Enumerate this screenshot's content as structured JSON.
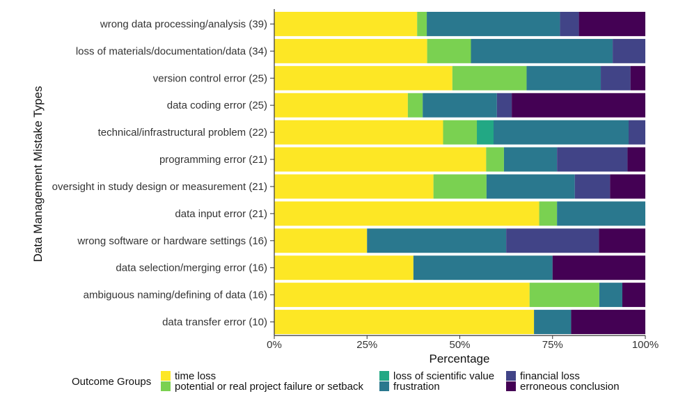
{
  "chart_data": {
    "type": "bar",
    "orientation": "horizontal",
    "stacked": "percent",
    "title": "",
    "xlabel": "Percentage",
    "ylabel": "Data Management Mistake Types",
    "xlim": [
      0,
      100
    ],
    "x_ticks": [
      "0%",
      "25%",
      "50%",
      "75%",
      "100%"
    ],
    "grid": false,
    "legend_position": "bottom",
    "legend_title": "Outcome Groups",
    "categories": [
      "wrong data processing/analysis (39)",
      "loss of materials/documentation/data (34)",
      "version control error (25)",
      "data coding error (25)",
      "technical/infrastructural problem (22)",
      "programming error (21)",
      "oversight in study design or measurement (21)",
      "data input error (21)",
      "wrong software or hardware settings (16)",
      "data selection/merging error (16)",
      "ambiguous naming/defining of data (16)",
      "data transfer error (10)"
    ],
    "series": [
      {
        "name": "time loss",
        "color": "#fde725",
        "values": [
          38.5,
          41.2,
          48.0,
          36.0,
          45.5,
          57.1,
          42.9,
          71.4,
          25.0,
          37.5,
          68.8,
          70.0
        ]
      },
      {
        "name": "potential or real project failure or setback",
        "color": "#7ad151",
        "values": [
          2.6,
          11.8,
          20.0,
          4.0,
          9.1,
          4.8,
          14.3,
          4.8,
          0,
          0,
          18.8,
          0
        ]
      },
      {
        "name": "loss of scientific value",
        "color": "#22a884",
        "values": [
          0,
          0,
          0,
          0,
          4.5,
          0,
          0,
          0,
          0,
          0,
          0,
          0
        ]
      },
      {
        "name": "frustration",
        "color": "#2a788e",
        "values": [
          35.9,
          38.2,
          20.0,
          20.0,
          36.4,
          14.3,
          23.8,
          23.8,
          37.5,
          37.5,
          6.2,
          10.0
        ]
      },
      {
        "name": "financial loss",
        "color": "#414487",
        "values": [
          5.1,
          8.8,
          8.0,
          4.0,
          4.5,
          19.0,
          9.5,
          0,
          25.0,
          0,
          0,
          0
        ]
      },
      {
        "name": "erroneous conclusion",
        "color": "#440154",
        "values": [
          17.9,
          0,
          4.0,
          36.0,
          0,
          4.8,
          9.5,
          0,
          12.5,
          25.0,
          6.2,
          20.0
        ]
      }
    ]
  },
  "legend": {
    "title": "Outcome Groups",
    "items": [
      {
        "label": "time loss",
        "color": "#fde725"
      },
      {
        "label": "potential or real project failure or setback",
        "color": "#7ad151"
      },
      {
        "label": "loss of scientific value",
        "color": "#22a884"
      },
      {
        "label": "frustration",
        "color": "#2a788e"
      },
      {
        "label": "financial loss",
        "color": "#414487"
      },
      {
        "label": "erroneous conclusion",
        "color": "#440154"
      }
    ]
  }
}
